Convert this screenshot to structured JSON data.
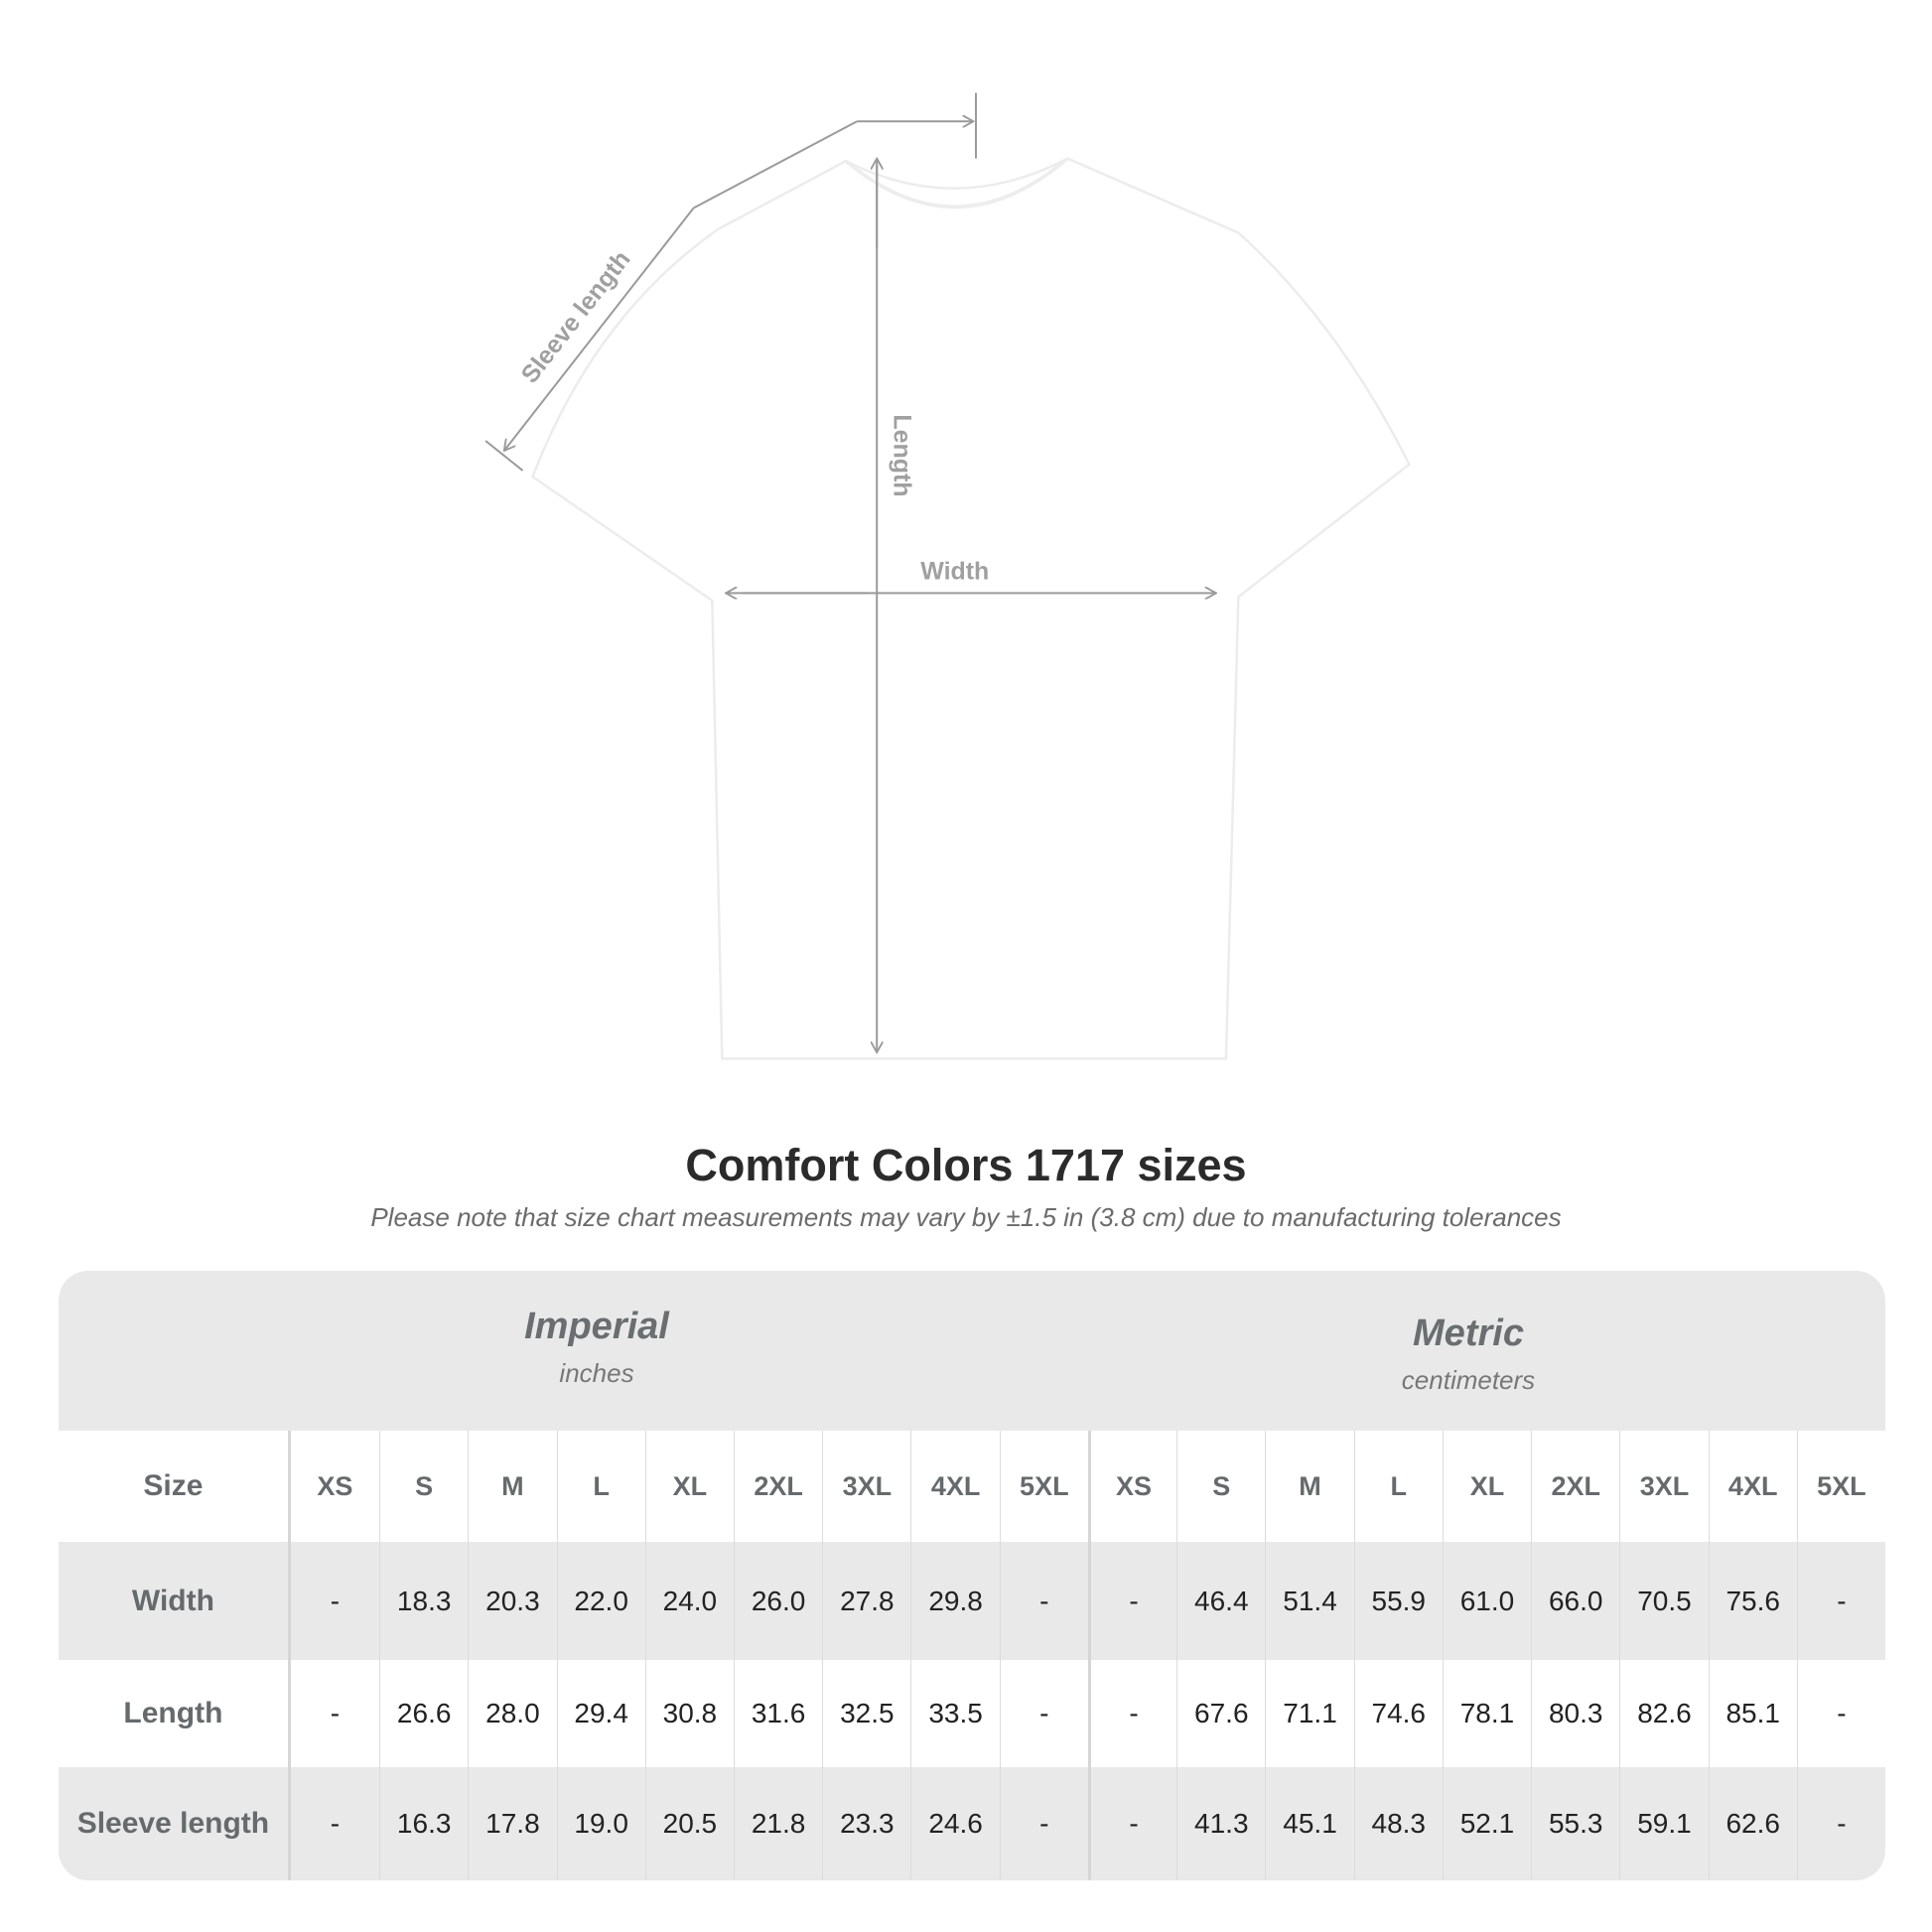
{
  "diagram": {
    "sleeve_label": "Sleeve length",
    "length_label": "Length",
    "width_label": "Width",
    "shirt_color": "#ffffff",
    "line_color": "#9a9a9a"
  },
  "title": "Comfort Colors 1717 sizes",
  "subtitle": "Please note that size chart measurements may vary by ±1.5 in (3.8 cm) due to manufacturing tolerances",
  "table": {
    "imperial": {
      "name": "Imperial",
      "unit": "inches"
    },
    "metric": {
      "name": "Metric",
      "unit": "centimeters"
    },
    "size_label": "Size",
    "sizes": [
      "XS",
      "S",
      "M",
      "L",
      "XL",
      "2XL",
      "3XL",
      "4XL",
      "5XL"
    ],
    "rows": [
      {
        "label": "Width",
        "imperial": [
          "-",
          "18.3",
          "20.3",
          "22.0",
          "24.0",
          "26.0",
          "27.8",
          "29.8",
          "-"
        ],
        "metric": [
          "-",
          "46.4",
          "51.4",
          "55.9",
          "61.0",
          "66.0",
          "70.5",
          "75.6",
          "-"
        ]
      },
      {
        "label": "Length",
        "imperial": [
          "-",
          "26.6",
          "28.0",
          "29.4",
          "30.8",
          "31.6",
          "32.5",
          "33.5",
          "-"
        ],
        "metric": [
          "-",
          "67.6",
          "71.1",
          "74.6",
          "78.1",
          "80.3",
          "82.6",
          "85.1",
          "-"
        ]
      },
      {
        "label": "Sleeve length",
        "imperial": [
          "-",
          "16.3",
          "17.8",
          "19.0",
          "20.5",
          "21.8",
          "23.3",
          "24.6",
          "-"
        ],
        "metric": [
          "-",
          "41.3",
          "45.1",
          "48.3",
          "52.1",
          "55.3",
          "59.1",
          "62.6",
          "-"
        ]
      }
    ]
  }
}
